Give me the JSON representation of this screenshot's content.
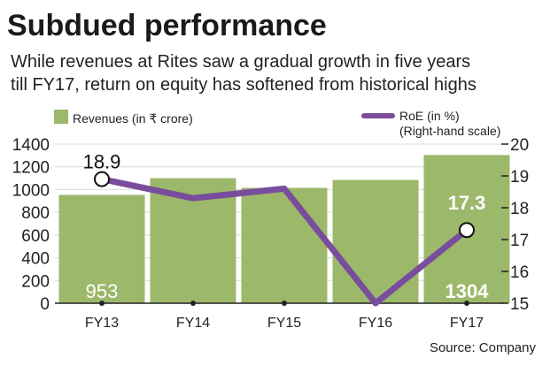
{
  "chart_data": {
    "type": "bar+line",
    "title": "Subdued performance",
    "subtitle_lines": [
      "While revenues at Rites saw a gradual growth in five years",
      "till FY17, return on equity has softened from historical highs"
    ],
    "categories": [
      "FY13",
      "FY14",
      "FY15",
      "FY16",
      "FY17"
    ],
    "series": [
      {
        "name": "Revenues (in ₹ crore)",
        "type": "bar",
        "axis": "left",
        "color": "#9cb86a",
        "values": [
          953,
          1100,
          1015,
          1085,
          1304
        ]
      },
      {
        "name": "RoE (in %)",
        "note": "(Right-hand scale)",
        "type": "line",
        "axis": "right",
        "color": "#7a4d9c",
        "values": [
          18.9,
          18.3,
          18.6,
          15.0,
          17.3
        ]
      }
    ],
    "data_labels": {
      "bars": [
        {
          "index": 0,
          "text": "953"
        },
        {
          "index": 4,
          "text": "1304"
        }
      ],
      "line": [
        {
          "index": 0,
          "text": "18.9"
        },
        {
          "index": 4,
          "text": "17.3"
        }
      ]
    },
    "left_axis": {
      "ylim": [
        0,
        1400
      ],
      "ticks": [
        "0",
        "200",
        "400",
        "600",
        "800",
        "1000",
        "1200",
        "1400"
      ]
    },
    "right_axis": {
      "ylim": [
        15,
        20
      ],
      "ticks": [
        "15",
        "16",
        "17",
        "18",
        "19",
        "20"
      ]
    },
    "grid": true,
    "legend": "top",
    "source": "Source: Company"
  }
}
